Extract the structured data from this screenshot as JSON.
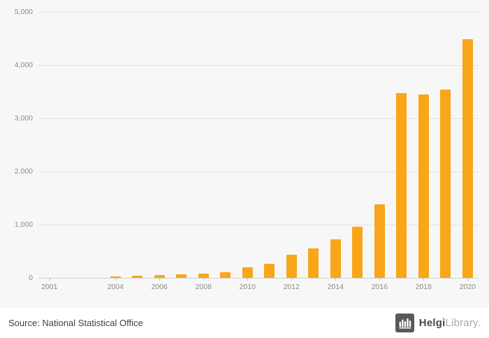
{
  "chart_data": {
    "type": "bar",
    "categories": [
      "2001",
      "2002",
      "2003",
      "2004",
      "2005",
      "2006",
      "2007",
      "2008",
      "2009",
      "2010",
      "2011",
      "2012",
      "2013",
      "2014",
      "2015",
      "2016",
      "2017",
      "2018",
      "2019",
      "2020"
    ],
    "values": [
      0,
      0,
      5,
      25,
      40,
      50,
      60,
      75,
      110,
      200,
      260,
      430,
      555,
      730,
      965,
      1385,
      3475,
      3450,
      3545,
      4490
    ],
    "title": "",
    "xlabel": "",
    "ylabel": "",
    "ylim": [
      0,
      5000
    ],
    "y_ticks": [
      {
        "value": 0,
        "label": "0"
      },
      {
        "value": 1000,
        "label": "1,000"
      },
      {
        "value": 2000,
        "label": "2,000"
      },
      {
        "value": 3000,
        "label": "3,000"
      },
      {
        "value": 4000,
        "label": "4,000"
      },
      {
        "value": 5000,
        "label": "5,000"
      }
    ],
    "x_ticks": [
      "2001",
      "2004",
      "2006",
      "2008",
      "2010",
      "2012",
      "2014",
      "2016",
      "2018",
      "2020"
    ],
    "grid": "horizontal",
    "legend": "none",
    "bar_color": "#F9A61A",
    "background_color": "#f7f7f7"
  },
  "footer": {
    "source_text": "Source: National Statistical Office",
    "logo": {
      "part1": "Helgi",
      "part2": "Library.",
      "icon": "factory-icon"
    }
  }
}
